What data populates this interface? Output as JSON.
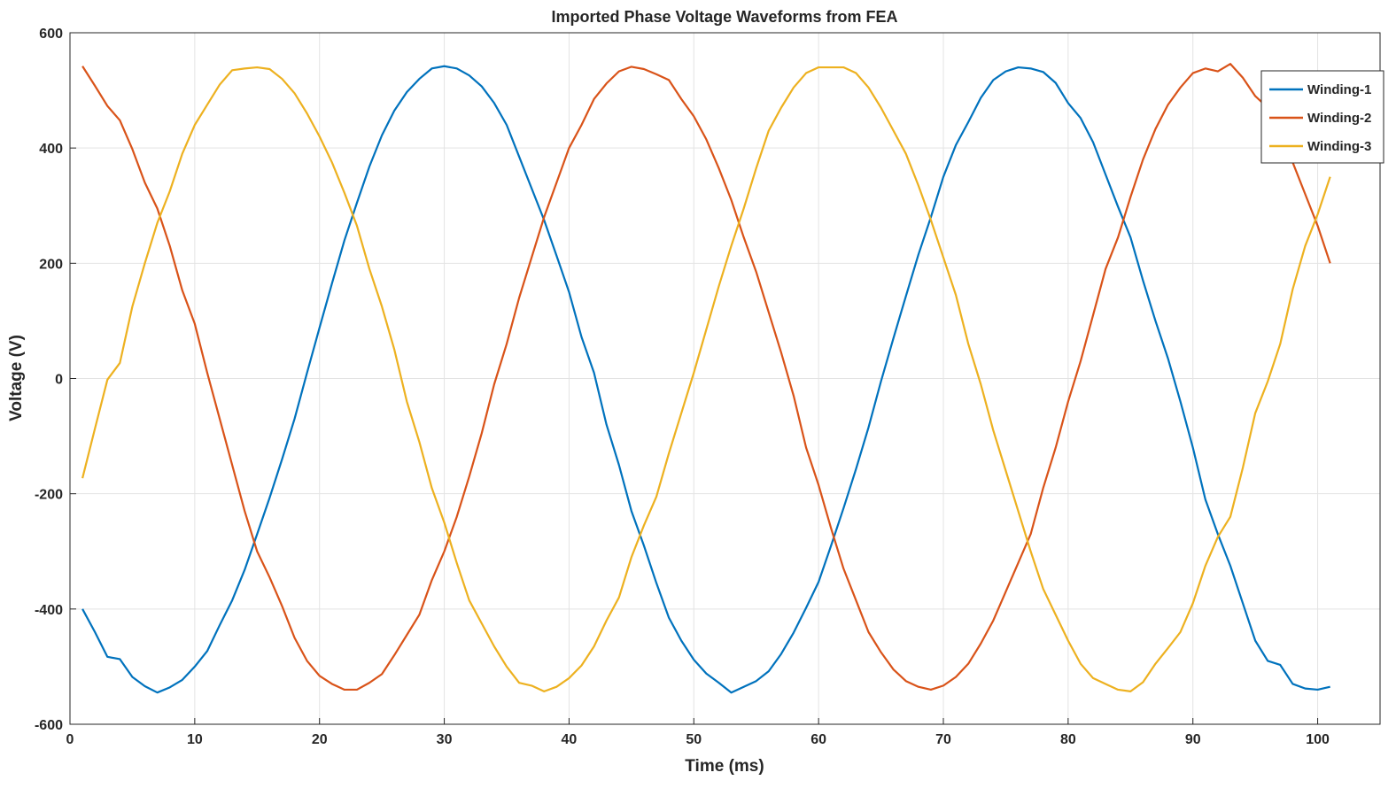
{
  "chart_data": {
    "type": "line",
    "title": "Imported Phase Voltage Waveforms from FEA",
    "xlabel": "Time (ms)",
    "ylabel": "Voltage (V)",
    "xlim": [
      0,
      105
    ],
    "ylim": [
      -600,
      600
    ],
    "xticks": [
      0,
      10,
      20,
      30,
      40,
      50,
      60,
      70,
      80,
      90,
      100
    ],
    "yticks": [
      -600,
      -400,
      -200,
      0,
      200,
      400,
      600
    ],
    "grid": true,
    "legend_position": "top-right",
    "x": [
      1,
      2,
      3,
      4,
      5,
      6,
      7,
      8,
      9,
      10,
      11,
      12,
      13,
      14,
      15,
      16,
      17,
      18,
      19,
      20,
      21,
      22,
      23,
      24,
      25,
      26,
      27,
      28,
      29,
      30,
      31,
      32,
      33,
      34,
      35,
      36,
      37,
      38,
      39,
      40,
      41,
      42,
      43,
      44,
      45,
      46,
      47,
      48,
      49,
      50,
      51,
      52,
      53,
      54,
      55,
      56,
      57,
      58,
      59,
      60,
      61,
      62,
      63,
      64,
      65,
      66,
      67,
      68,
      69,
      70,
      71,
      72,
      73,
      74,
      75,
      76,
      77,
      78,
      79,
      80,
      81,
      82,
      83,
      84,
      85,
      86,
      87,
      88,
      89,
      90,
      91,
      92,
      93,
      94,
      95,
      96,
      97,
      98,
      99,
      100,
      101
    ],
    "series": [
      {
        "name": "Winding-1",
        "color": "#0072BD",
        "values": [
          -400,
          -440,
          -483,
          -487,
          -518,
          -534,
          -545,
          -536,
          -523,
          -500,
          -473,
          -428,
          -385,
          -332,
          -270,
          -207,
          -140,
          -70,
          10,
          88,
          165,
          240,
          305,
          368,
          422,
          465,
          497,
          520,
          538,
          542,
          538,
          526,
          507,
          478,
          440,
          385,
          330,
          275,
          213,
          150,
          72,
          10,
          -80,
          -150,
          -230,
          -290,
          -355,
          -415,
          -455,
          -488,
          -512,
          -528,
          -545,
          -535,
          -525,
          -508,
          -478,
          -441,
          -398,
          -353,
          -290,
          -225,
          -157,
          -85,
          -5,
          70,
          143,
          215,
          280,
          350,
          405,
          445,
          487,
          518,
          533,
          540,
          538,
          532,
          513,
          478,
          452,
          410,
          354,
          298,
          245,
          170,
          100,
          35,
          -40,
          -120,
          -210,
          -270,
          -325,
          -390,
          -455,
          -490,
          -497,
          -530,
          -538,
          -540,
          -535
        ]
      },
      {
        "name": "Winding-2",
        "color": "#D95319",
        "values": [
          542,
          508,
          473,
          448,
          398,
          340,
          295,
          230,
          153,
          95,
          10,
          -70,
          -150,
          -230,
          -300,
          -345,
          -395,
          -450,
          -490,
          -516,
          -530,
          -540,
          -540,
          -528,
          -513,
          -480,
          -445,
          -410,
          -350,
          -300,
          -240,
          -170,
          -95,
          -10,
          60,
          140,
          210,
          280,
          340,
          400,
          440,
          485,
          512,
          533,
          541,
          537,
          528,
          518,
          485,
          455,
          415,
          365,
          310,
          245,
          185,
          115,
          45,
          -30,
          -120,
          -185,
          -260,
          -330,
          -385,
          -440,
          -475,
          -505,
          -525,
          -535,
          -540,
          -533,
          -518,
          -495,
          -460,
          -420,
          -370,
          -320,
          -270,
          -190,
          -120,
          -40,
          30,
          110,
          190,
          245,
          315,
          380,
          433,
          475,
          505,
          530,
          538,
          533,
          546,
          522,
          490,
          470,
          430,
          375,
          320,
          265,
          200
        ]
      },
      {
        "name": "Winding-3",
        "color": "#EDB120",
        "values": [
          -173,
          -87,
          -2,
          27,
          125,
          200,
          270,
          325,
          390,
          440,
          475,
          510,
          535,
          538,
          540,
          537,
          520,
          495,
          460,
          420,
          375,
          322,
          265,
          190,
          125,
          50,
          -40,
          -110,
          -190,
          -250,
          -320,
          -385,
          -425,
          -465,
          -500,
          -528,
          -533,
          -543,
          -535,
          -520,
          -498,
          -465,
          -420,
          -380,
          -310,
          -255,
          -205,
          -130,
          -60,
          10,
          85,
          160,
          230,
          295,
          365,
          430,
          470,
          505,
          530,
          540,
          540,
          540,
          530,
          505,
          470,
          430,
          390,
          335,
          275,
          210,
          145,
          60,
          -10,
          -90,
          -160,
          -230,
          -300,
          -365,
          -410,
          -455,
          -495,
          -520,
          -530,
          -540,
          -543,
          -527,
          -495,
          -468,
          -440,
          -390,
          -325,
          -275,
          -240,
          -155,
          -60,
          -5,
          60,
          155,
          230,
          285,
          350
        ]
      }
    ]
  }
}
